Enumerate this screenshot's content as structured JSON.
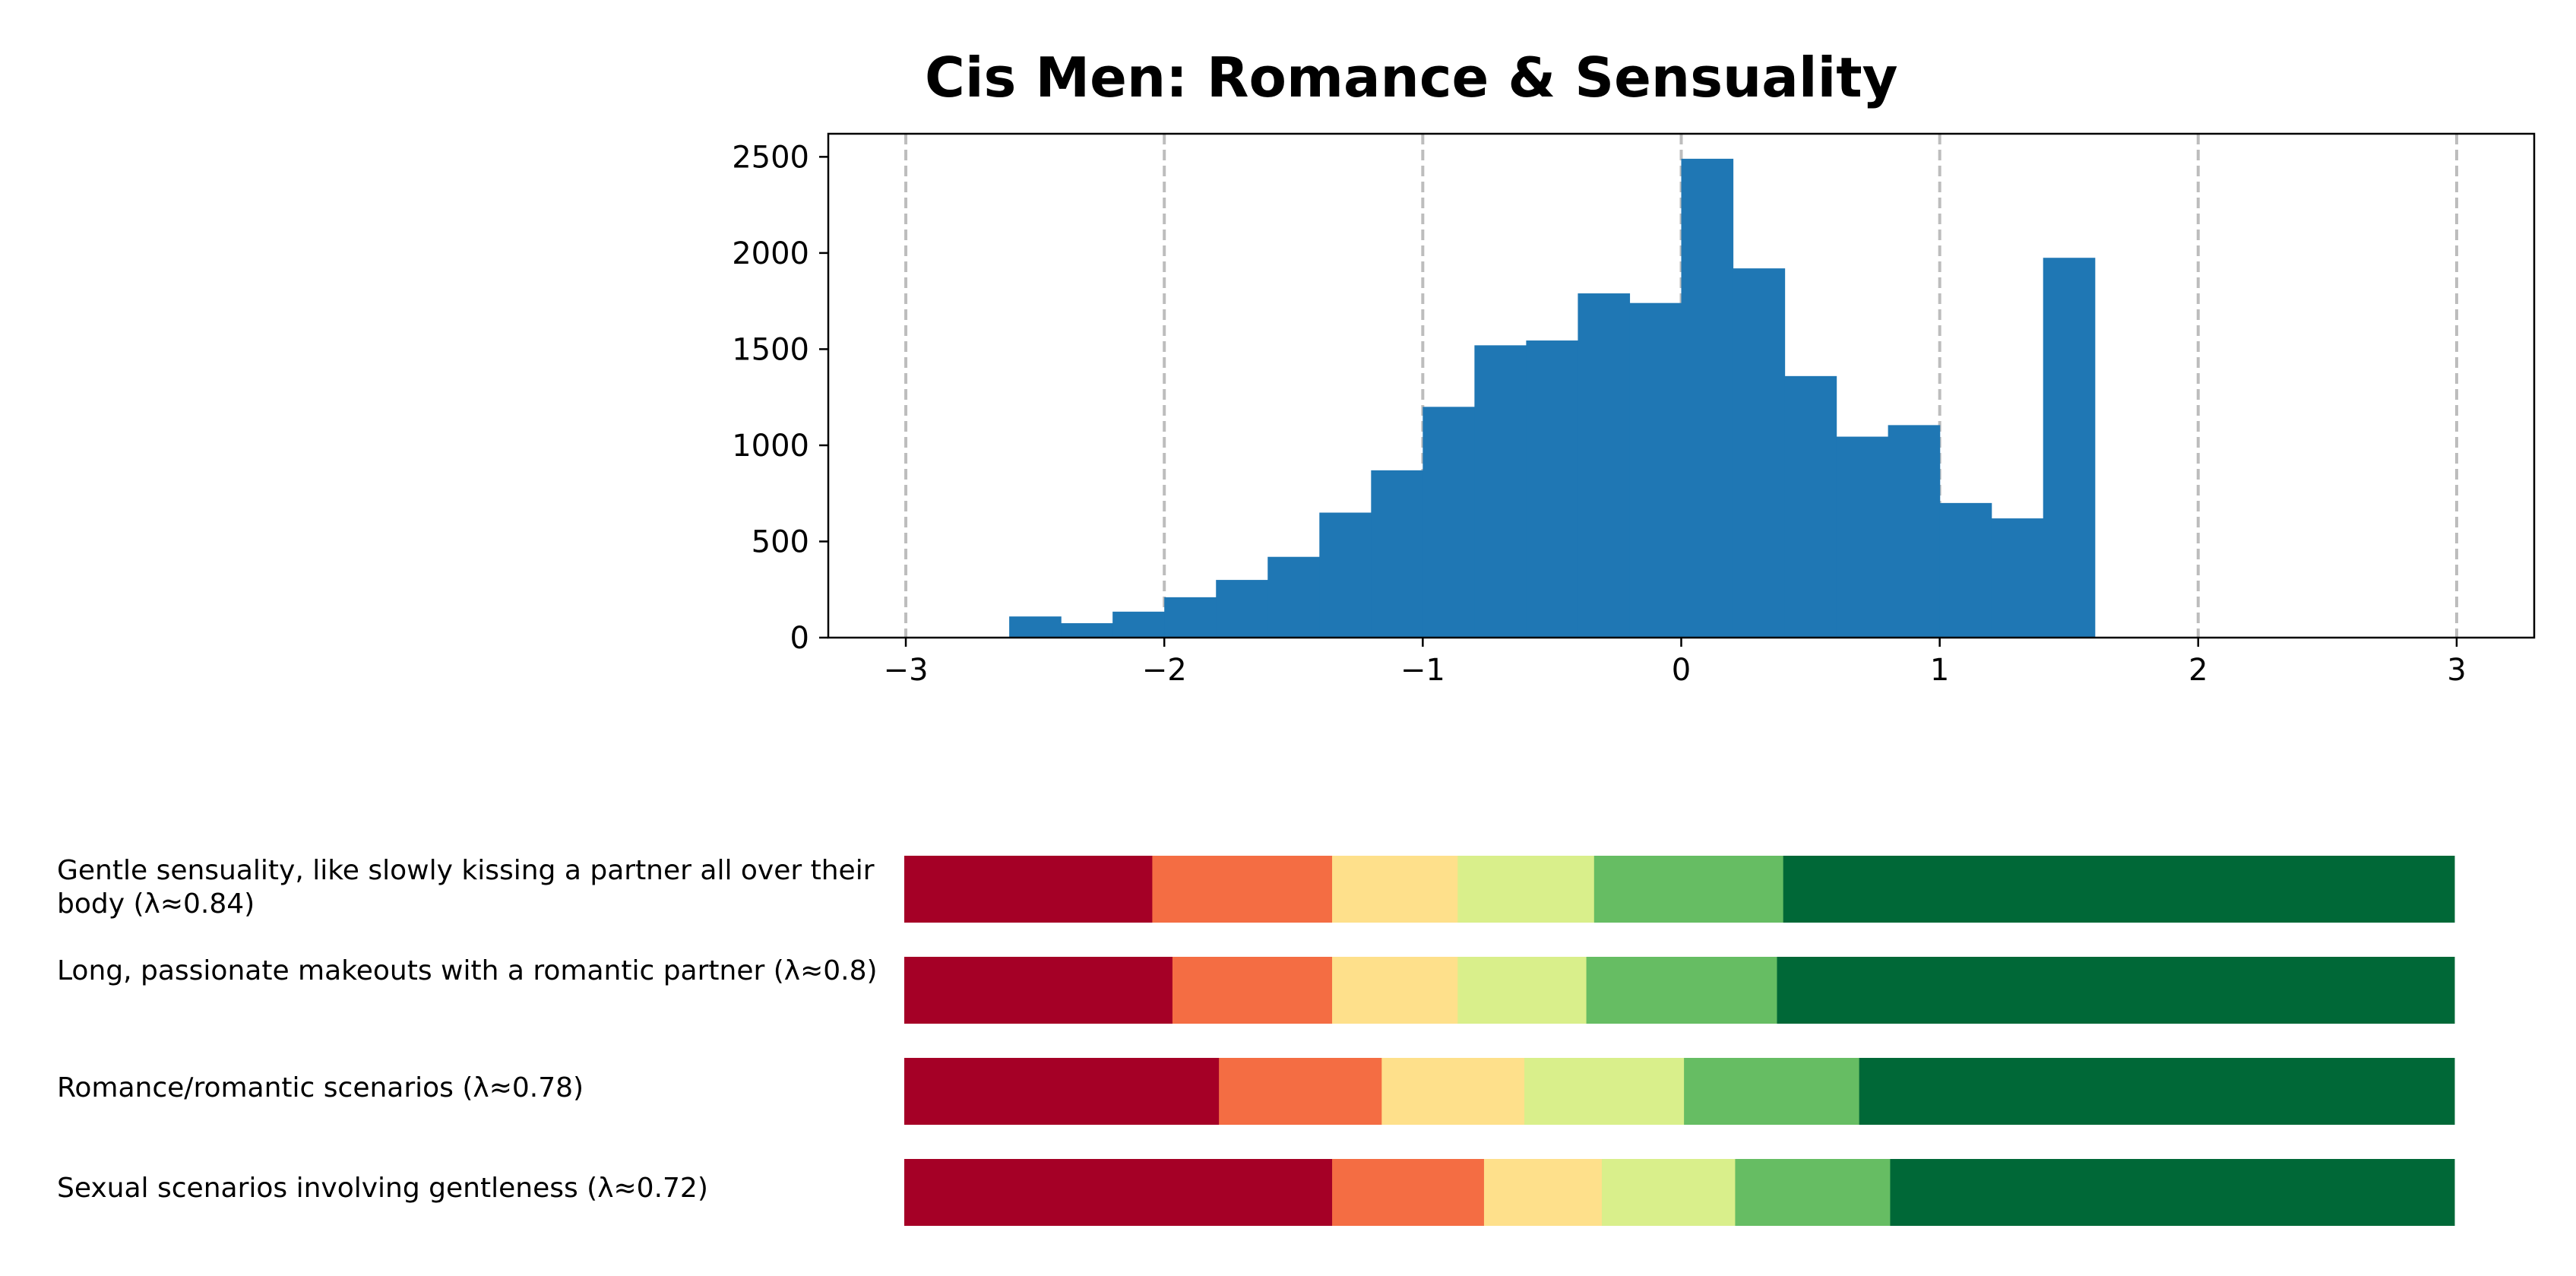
{
  "chart_data": [
    {
      "type": "bar",
      "subtype": "histogram",
      "title": "Cis Men: Romance & Sensuality",
      "xlabel": "",
      "ylabel": "",
      "xlim": [
        -3.3,
        3.3
      ],
      "ylim": [
        0,
        2620
      ],
      "xticks": [
        -3,
        -2,
        -1,
        0,
        1,
        2,
        3
      ],
      "xtick_labels": [
        "−3",
        "−2",
        "−1",
        "0",
        "1",
        "2",
        "3"
      ],
      "yticks": [
        0,
        500,
        1000,
        1500,
        2000,
        2500
      ],
      "ytick_labels": [
        "0",
        "500",
        "1000",
        "1500",
        "2000",
        "2500"
      ],
      "grid": "vertical dashed at x ticks",
      "bin_width": 0.2,
      "bin_start": [
        -2.6,
        -2.4,
        -2.2,
        -2.0,
        -1.8,
        -1.6,
        -1.4,
        -1.2,
        -1.0,
        -0.8,
        -0.6,
        -0.4,
        -0.2,
        0.0,
        0.2,
        0.4,
        0.6,
        0.8,
        1.0,
        1.2,
        1.4
      ],
      "values": [
        110,
        75,
        135,
        210,
        300,
        420,
        650,
        870,
        1200,
        1520,
        1545,
        1790,
        1740,
        2490,
        1920,
        1360,
        1045,
        1105,
        700,
        620,
        1975
      ],
      "color": "#1f77b4"
    },
    {
      "type": "bar",
      "subtype": "stacked-horizontal-100",
      "categories": [
        "Gentle sensuality, like slowly kissing a partner all over their body (λ≈0.84)",
        "Long, passionate makeouts with a romantic partner (λ≈0.8)",
        "Romance/romantic scenarios (λ≈0.78)",
        "Sexual scenarios involving gentleness (λ≈0.72)"
      ],
      "segment_colors": [
        "#a50026",
        "#f46d43",
        "#fee08b",
        "#d9ef8b",
        "#66bd63",
        "#006837"
      ],
      "shares": [
        [
          0.16,
          0.116,
          0.081,
          0.088,
          0.122,
          0.433
        ],
        [
          0.173,
          0.103,
          0.081,
          0.083,
          0.123,
          0.437
        ],
        [
          0.203,
          0.105,
          0.092,
          0.103,
          0.113,
          0.384
        ],
        [
          0.276,
          0.098,
          0.076,
          0.086,
          0.1,
          0.364
        ]
      ]
    }
  ]
}
